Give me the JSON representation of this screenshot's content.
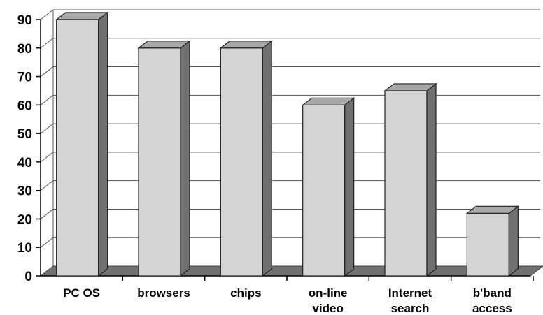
{
  "chart_data": {
    "type": "bar",
    "categories": [
      "PC OS",
      "browsers",
      "chips",
      "on-line video",
      "Internet search",
      "b'band access"
    ],
    "category_lines": [
      [
        "PC OS"
      ],
      [
        "browsers"
      ],
      [
        "chips"
      ],
      [
        "on-line",
        "video"
      ],
      [
        "Internet",
        "search"
      ],
      [
        "b'band",
        "access"
      ]
    ],
    "values": [
      90,
      80,
      80,
      60,
      65,
      22
    ],
    "title": "",
    "xlabel": "",
    "ylabel": "",
    "ylim": [
      0,
      90
    ],
    "yticks": [
      0,
      10,
      20,
      30,
      40,
      50,
      60,
      70,
      80,
      90
    ],
    "grid": true,
    "style": "3d",
    "colors": {
      "bar_front": "#d4d4d4",
      "bar_side": "#707070",
      "bar_top": "#a8a8a8",
      "floor": "#707070",
      "grid": "#555555"
    }
  }
}
